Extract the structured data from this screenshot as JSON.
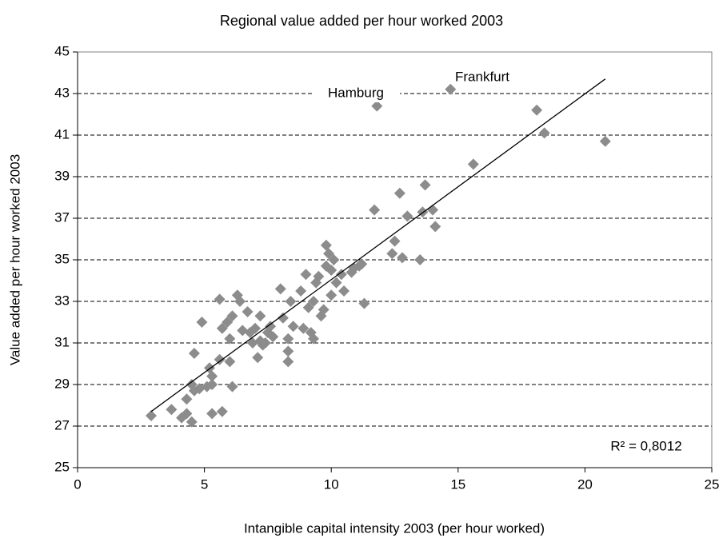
{
  "chart_data": {
    "type": "scatter",
    "title": "Regional value added per hour worked 2003",
    "x_label": "Intangible capital intensity 2003 (per hour worked)",
    "y_label": "Value added per hour worked 2003",
    "color": "#8c8c8c",
    "x": [
      2.9,
      3.7,
      4.1,
      4.3,
      4.5,
      4.3,
      4.5,
      4.6,
      4.8,
      4.6,
      4.9,
      5.1,
      5.2,
      5.3,
      5.3,
      5.3,
      5.7,
      5.6,
      5.6,
      5.7,
      5.9,
      6.0,
      6.0,
      6.1,
      6.1,
      6.3,
      6.4,
      6.5,
      6.7,
      6.8,
      6.9,
      7.0,
      7.1,
      7.2,
      7.2,
      7.3,
      7.4,
      7.5,
      7.6,
      7.7,
      8.0,
      8.1,
      8.3,
      8.3,
      8.3,
      8.4,
      8.5,
      8.8,
      8.9,
      9.0,
      9.1,
      9.2,
      9.3,
      9.3,
      9.4,
      9.5,
      9.6,
      9.7,
      9.8,
      9.8,
      9.9,
      10.0,
      10.0,
      10.1,
      10.2,
      10.4,
      10.5,
      10.8,
      10.9,
      11.1,
      11.2,
      11.3,
      11.7,
      11.8,
      12.4,
      12.5,
      12.7,
      12.8,
      13.0,
      13.5,
      13.6,
      13.7,
      14.0,
      14.1,
      14.7,
      15.6,
      18.1,
      18.4,
      20.8
    ],
    "y": [
      27.5,
      27.8,
      27.4,
      27.6,
      27.2,
      28.3,
      29.0,
      28.7,
      28.8,
      30.5,
      32.0,
      28.9,
      29.8,
      29.4,
      29.0,
      27.6,
      27.7,
      30.2,
      33.1,
      31.7,
      32.0,
      31.2,
      30.1,
      28.9,
      32.3,
      33.3,
      33.0,
      31.6,
      32.5,
      31.5,
      31.0,
      31.7,
      30.3,
      31.1,
      32.3,
      30.9,
      31.0,
      31.5,
      31.8,
      31.3,
      33.6,
      32.2,
      31.2,
      30.6,
      30.1,
      33.0,
      31.8,
      33.5,
      31.7,
      34.3,
      32.7,
      31.5,
      33.0,
      31.2,
      33.9,
      34.2,
      32.3,
      32.6,
      35.7,
      34.7,
      35.3,
      33.3,
      34.5,
      35.0,
      33.9,
      34.3,
      33.5,
      34.4,
      34.6,
      34.7,
      34.8,
      32.9,
      37.4,
      42.4,
      35.3,
      35.9,
      38.2,
      35.1,
      37.1,
      35.0,
      37.3,
      38.6,
      37.4,
      36.6,
      43.2,
      39.6,
      42.2,
      41.1,
      40.7
    ],
    "trendline": {
      "x": [
        2.9,
        20.8
      ],
      "y": [
        27.7,
        43.7
      ]
    },
    "annotations": [
      "Hamburg",
      "Frankfurt",
      "R² = 0,8012"
    ],
    "xlim": [
      0,
      25
    ],
    "xticks": [
      0,
      5,
      10,
      15,
      20,
      25
    ],
    "ylim": [
      25,
      45
    ],
    "yticks": [
      25,
      27,
      29,
      31,
      33,
      35,
      37,
      39,
      41,
      43,
      45
    ],
    "grid": true
  }
}
